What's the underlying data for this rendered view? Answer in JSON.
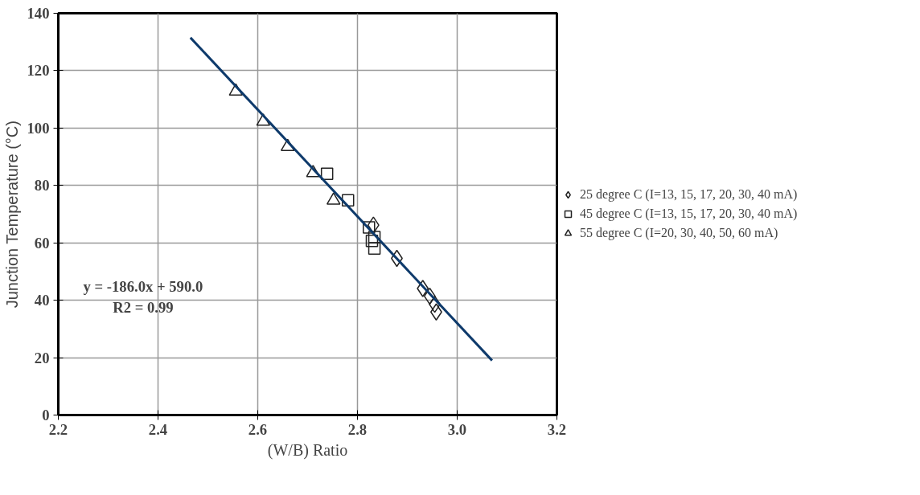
{
  "chart_data": {
    "type": "scatter",
    "xlabel": "(W/B) Ratio",
    "ylabel": "Junction Temperature (°C)",
    "xlim": [
      2.2,
      3.2
    ],
    "ylim": [
      0,
      140
    ],
    "xticks": [
      {
        "value": 2.2,
        "label": "2.2"
      },
      {
        "value": 2.4,
        "label": "2.4"
      },
      {
        "value": 2.6,
        "label": "2.6"
      },
      {
        "value": 2.8,
        "label": "2.8"
      },
      {
        "value": 3.0,
        "label": "3.0"
      },
      {
        "value": 3.2,
        "label": "3.2"
      }
    ],
    "yticks": [
      0,
      20,
      40,
      60,
      80,
      100,
      120,
      140
    ],
    "grid": true,
    "legend": "right",
    "annotations": [
      "y = -186.0x + 590.0",
      "R2 = 0.99"
    ],
    "series": [
      {
        "name": "25 degree C (I=13, 15, 17, 20, 30, 40 mA)",
        "color": "#222222",
        "marker": "diamond",
        "x": [
          2.832,
          2.879,
          2.931,
          2.945,
          2.955,
          2.958
        ],
        "values": [
          66.2,
          54.6,
          44.1,
          41.4,
          38.6,
          35.9
        ]
      },
      {
        "name": "45 degree C (I=13, 15, 17, 20, 30, 40 mA)",
        "color": "#222222",
        "marker": "square",
        "x": [
          2.739,
          2.781,
          2.823,
          2.834,
          2.829,
          2.834
        ],
        "values": [
          84.1,
          74.8,
          65.4,
          62.0,
          60.7,
          58.0
        ]
      },
      {
        "name": "55 degree C (I=20, 30, 40, 50, 60 mA)",
        "color": "#222222",
        "marker": "triangle",
        "x": [
          2.556,
          2.611,
          2.66,
          2.711,
          2.752
        ],
        "values": [
          112.8,
          102.3,
          93.5,
          84.4,
          74.8
        ]
      },
      {
        "type": "line",
        "color": "#0e3a6b",
        "x": [
          2.465,
          3.07
        ],
        "values": [
          131.5,
          19.0
        ]
      }
    ]
  }
}
